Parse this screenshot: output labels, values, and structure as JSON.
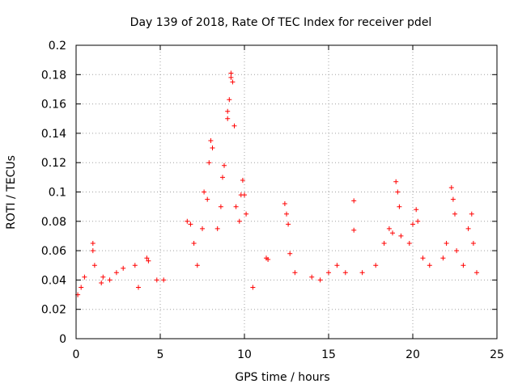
{
  "chart_data": {
    "type": "scatter",
    "title": "Day 139 of 2018, Rate Of TEC Index for receiver pdel",
    "xlabel": "GPS time / hours",
    "ylabel": "ROTI / TECUs",
    "xlim": [
      0,
      25
    ],
    "ylim": [
      0,
      0.2
    ],
    "xticks": [
      0,
      5,
      10,
      15,
      20,
      25
    ],
    "yticks": [
      0,
      0.02,
      0.04,
      0.06,
      0.08,
      0.1,
      0.12,
      0.14,
      0.16,
      0.18,
      0.2
    ],
    "xtick_labels": [
      "0",
      "5",
      "10",
      "15",
      "20",
      "25"
    ],
    "ytick_labels": [
      "0",
      "0.02",
      "0.04",
      "0.06",
      "0.08",
      "0.1",
      "0.12",
      "0.14",
      "0.16",
      "0.18",
      "0.2"
    ],
    "grid": true,
    "marker": "+",
    "color": "#ff0000",
    "series": [
      {
        "name": "ROTI",
        "points": [
          [
            0.1,
            0.03
          ],
          [
            0.3,
            0.035
          ],
          [
            0.5,
            0.042
          ],
          [
            1.0,
            0.065
          ],
          [
            1.0,
            0.06
          ],
          [
            1.1,
            0.05
          ],
          [
            1.5,
            0.038
          ],
          [
            1.6,
            0.042
          ],
          [
            2.0,
            0.04
          ],
          [
            2.4,
            0.045
          ],
          [
            2.8,
            0.048
          ],
          [
            3.5,
            0.05
          ],
          [
            3.7,
            0.035
          ],
          [
            4.2,
            0.055
          ],
          [
            4.3,
            0.053
          ],
          [
            4.8,
            0.04
          ],
          [
            5.2,
            0.04
          ],
          [
            6.6,
            0.08
          ],
          [
            6.8,
            0.078
          ],
          [
            7.0,
            0.065
          ],
          [
            7.2,
            0.05
          ],
          [
            7.5,
            0.075
          ],
          [
            7.6,
            0.1
          ],
          [
            7.8,
            0.095
          ],
          [
            7.9,
            0.12
          ],
          [
            8.0,
            0.135
          ],
          [
            8.1,
            0.13
          ],
          [
            8.4,
            0.075
          ],
          [
            8.6,
            0.09
          ],
          [
            8.7,
            0.11
          ],
          [
            8.8,
            0.118
          ],
          [
            9.0,
            0.15
          ],
          [
            9.0,
            0.155
          ],
          [
            9.1,
            0.163
          ],
          [
            9.2,
            0.178
          ],
          [
            9.2,
            0.181
          ],
          [
            9.3,
            0.175
          ],
          [
            9.4,
            0.145
          ],
          [
            9.5,
            0.09
          ],
          [
            9.7,
            0.08
          ],
          [
            9.8,
            0.098
          ],
          [
            9.9,
            0.108
          ],
          [
            10.0,
            0.098
          ],
          [
            10.1,
            0.085
          ],
          [
            10.5,
            0.035
          ],
          [
            11.3,
            0.055
          ],
          [
            11.4,
            0.054
          ],
          [
            12.4,
            0.092
          ],
          [
            12.5,
            0.085
          ],
          [
            12.6,
            0.078
          ],
          [
            12.7,
            0.058
          ],
          [
            13.0,
            0.045
          ],
          [
            14.0,
            0.042
          ],
          [
            14.5,
            0.04
          ],
          [
            15.0,
            0.045
          ],
          [
            15.5,
            0.05
          ],
          [
            16.0,
            0.045
          ],
          [
            16.5,
            0.094
          ],
          [
            16.5,
            0.074
          ],
          [
            17.0,
            0.045
          ],
          [
            17.8,
            0.05
          ],
          [
            18.3,
            0.065
          ],
          [
            18.6,
            0.075
          ],
          [
            18.8,
            0.072
          ],
          [
            19.0,
            0.107
          ],
          [
            19.1,
            0.1
          ],
          [
            19.2,
            0.09
          ],
          [
            19.3,
            0.07
          ],
          [
            19.8,
            0.065
          ],
          [
            20.0,
            0.078
          ],
          [
            20.2,
            0.088
          ],
          [
            20.3,
            0.08
          ],
          [
            20.6,
            0.055
          ],
          [
            21.0,
            0.05
          ],
          [
            21.8,
            0.055
          ],
          [
            22.0,
            0.065
          ],
          [
            22.3,
            0.103
          ],
          [
            22.4,
            0.095
          ],
          [
            22.5,
            0.085
          ],
          [
            22.6,
            0.06
          ],
          [
            23.0,
            0.05
          ],
          [
            23.3,
            0.075
          ],
          [
            23.5,
            0.085
          ],
          [
            23.6,
            0.065
          ],
          [
            23.8,
            0.045
          ]
        ]
      }
    ]
  }
}
